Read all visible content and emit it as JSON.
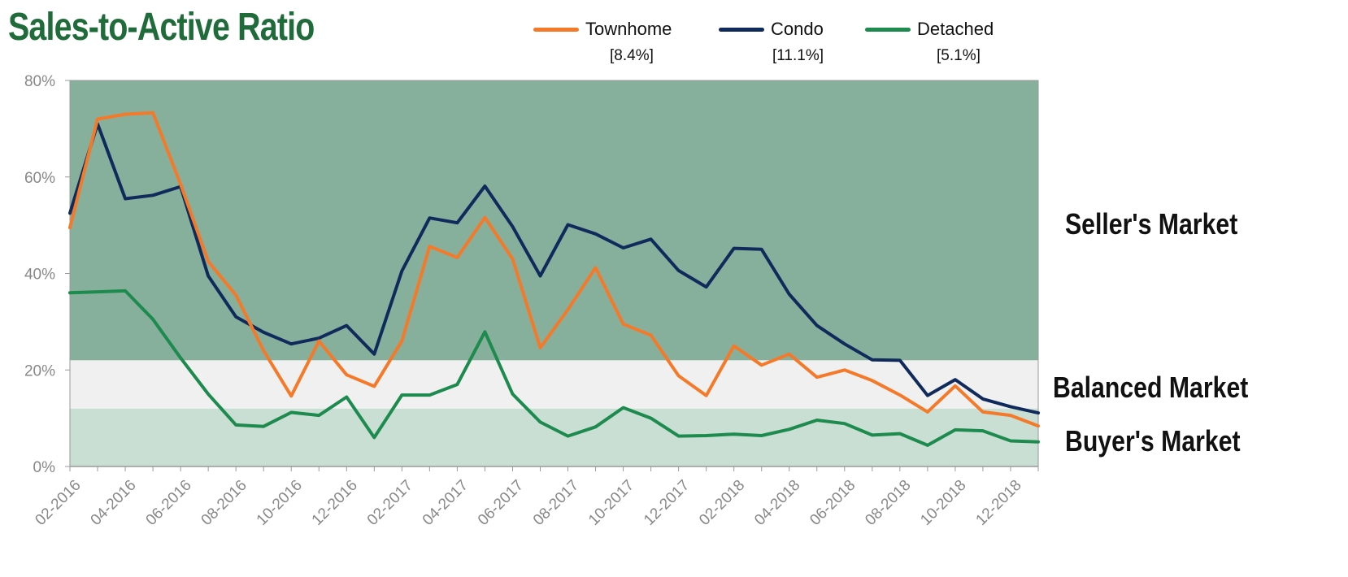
{
  "chart_data": {
    "type": "line",
    "title": "Sales-to-Active Ratio",
    "ylim": [
      0,
      80
    ],
    "y_ticks": [
      "0%",
      "20%",
      "40%",
      "60%",
      "80%"
    ],
    "x_tick_labels": [
      "02-2016",
      "04-2016",
      "06-2016",
      "08-2016",
      "10-2016",
      "12-2016",
      "02-2017",
      "04-2017",
      "06-2017",
      "08-2017",
      "10-2017",
      "12-2017",
      "02-2018",
      "04-2018",
      "06-2018",
      "08-2018",
      "10-2018",
      "12-2018"
    ],
    "months": [
      "02-2016",
      "03-2016",
      "04-2016",
      "05-2016",
      "06-2016",
      "07-2016",
      "08-2016",
      "09-2016",
      "10-2016",
      "11-2016",
      "12-2016",
      "01-2017",
      "02-2017",
      "03-2017",
      "04-2017",
      "05-2017",
      "06-2017",
      "07-2017",
      "08-2017",
      "09-2017",
      "10-2017",
      "11-2017",
      "12-2017",
      "01-2018",
      "02-2018",
      "03-2018",
      "04-2018",
      "05-2018",
      "06-2018",
      "07-2018",
      "08-2018",
      "09-2018",
      "10-2018",
      "11-2018",
      "12-2018",
      "01-2019"
    ],
    "zones": [
      {
        "name": "Seller's Market",
        "from": 22,
        "to": 80,
        "color": "#86b09b"
      },
      {
        "name": "Balanced Market",
        "from": 12,
        "to": 22,
        "color": "#f0f0f0"
      },
      {
        "name": "Buyer's Market",
        "from": 0,
        "to": 12,
        "color": "#c9dfd3"
      }
    ],
    "series": [
      {
        "name": "Townhome",
        "latest": "[8.4%]",
        "color": "#f47a2a",
        "values": [
          49.5,
          72,
          73,
          73.3,
          58.5,
          42.5,
          35.5,
          24,
          14.6,
          26,
          19,
          16.6,
          26,
          45.6,
          43.3,
          51.6,
          43,
          24.6,
          32.5,
          41.2,
          29.5,
          27.2,
          18.8,
          14.7,
          25,
          21,
          23.3,
          18.5,
          20,
          17.8,
          14.8,
          11.3,
          16.7,
          11.3,
          10.6,
          8.4
        ]
      },
      {
        "name": "Condo",
        "latest": "[11.1%]",
        "color": "#102a5c",
        "values": [
          52.5,
          71,
          55.5,
          56.2,
          58,
          39.5,
          31,
          27.8,
          25.4,
          26.6,
          29.2,
          23.3,
          40.5,
          51.5,
          50.5,
          58.1,
          49.7,
          39.5,
          50.1,
          48.2,
          45.3,
          47.1,
          40.6,
          37.2,
          45.2,
          45,
          35.7,
          29.2,
          25.4,
          22.1,
          22,
          14.7,
          18,
          14,
          12.4,
          11.1
        ]
      },
      {
        "name": "Detached",
        "latest": "[5.1%]",
        "color": "#1d8a4e",
        "values": [
          36,
          36.2,
          36.4,
          30.5,
          22.5,
          15,
          8.6,
          8.3,
          11.2,
          10.6,
          14.4,
          6,
          14.8,
          14.8,
          17,
          27.9,
          15,
          9.2,
          6.3,
          8.2,
          12.2,
          10,
          6.3,
          6.4,
          6.7,
          6.4,
          7.7,
          9.6,
          8.9,
          6.5,
          6.8,
          4.4,
          7.6,
          7.4,
          5.3,
          5.1
        ]
      }
    ]
  }
}
